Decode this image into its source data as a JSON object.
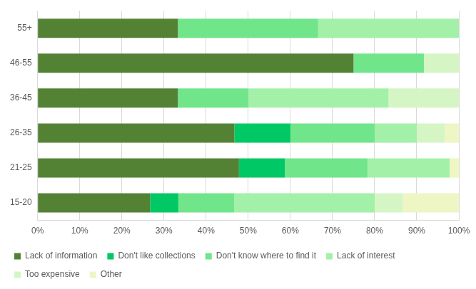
{
  "chart_data": {
    "type": "bar",
    "orientation": "horizontal",
    "stacked": true,
    "categories": [
      "55+",
      "46-55",
      "36-45",
      "26-35",
      "21-25",
      "15-20"
    ],
    "series": [
      {
        "name": "Lack of information",
        "color": "#548235",
        "values": [
          33.3,
          75,
          33.3,
          46.7,
          47.8,
          26.7
        ]
      },
      {
        "name": "Don't like collections",
        "color": "#00c864",
        "values": [
          0,
          0,
          0,
          13.3,
          10.9,
          6.7
        ]
      },
      {
        "name": "Don't know where to find it",
        "color": "#70e58a",
        "values": [
          33.3,
          16.7,
          16.7,
          20,
          19.6,
          13.3
        ]
      },
      {
        "name": "Lack of interest",
        "color": "#a3f0a8",
        "values": [
          33.4,
          0,
          33.3,
          10,
          19.5,
          33.3
        ]
      },
      {
        "name": "Too expensive",
        "color": "#d6f5c4",
        "values": [
          0,
          8.3,
          16.7,
          6.7,
          0,
          6.7
        ]
      },
      {
        "name": "Other",
        "color": "#eef6c4",
        "values": [
          0,
          0,
          0,
          3.3,
          2.2,
          13.3
        ]
      }
    ],
    "xlim": [
      0,
      100
    ],
    "xticks": [
      {
        "value": 0,
        "label": "0%"
      },
      {
        "value": 10,
        "label": "10%"
      },
      {
        "value": 20,
        "label": "20%"
      },
      {
        "value": 30,
        "label": "30%"
      },
      {
        "value": 40,
        "label": "40%"
      },
      {
        "value": 50,
        "label": "50%"
      },
      {
        "value": 60,
        "label": "60%"
      },
      {
        "value": 70,
        "label": "70%"
      },
      {
        "value": 80,
        "label": "80%"
      },
      {
        "value": 90,
        "label": "90%"
      },
      {
        "value": 100,
        "label": "100%"
      }
    ],
    "grid": true,
    "legend": "bottom"
  }
}
